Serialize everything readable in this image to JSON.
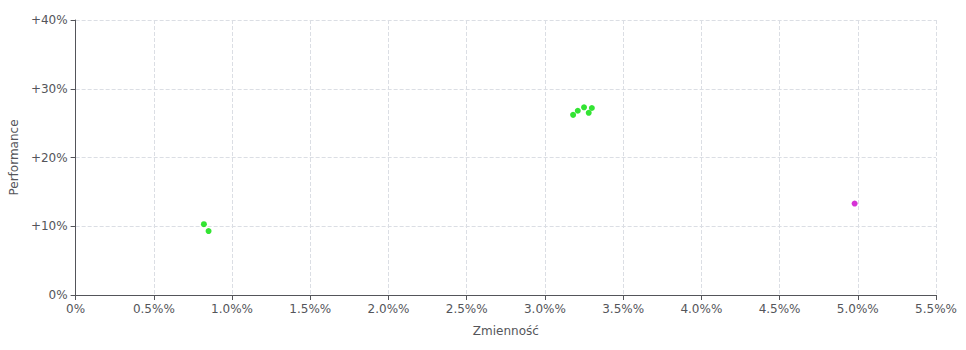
{
  "chart_data": {
    "type": "scatter",
    "xlabel": "Zmienność",
    "ylabel": "Performance",
    "xlim": [
      0.0,
      0.055
    ],
    "ylim": [
      0.0,
      0.4
    ],
    "xticks": [
      {
        "value": 0.0,
        "label": "0%"
      },
      {
        "value": 0.005,
        "label": "0.5%%"
      },
      {
        "value": 0.01,
        "label": "1.0%%"
      },
      {
        "value": 0.015,
        "label": "1.5%%"
      },
      {
        "value": 0.02,
        "label": "2.0%%"
      },
      {
        "value": 0.025,
        "label": "2.5%%"
      },
      {
        "value": 0.03,
        "label": "3.0%%"
      },
      {
        "value": 0.035,
        "label": "3.5%%"
      },
      {
        "value": 0.04,
        "label": "4.0%%"
      },
      {
        "value": 0.045,
        "label": "4.5%%"
      },
      {
        "value": 0.05,
        "label": "5.0%%"
      },
      {
        "value": 0.055,
        "label": "5.5%%"
      }
    ],
    "yticks": [
      {
        "value": 0.0,
        "label": "0%"
      },
      {
        "value": 0.1,
        "label": "+10%"
      },
      {
        "value": 0.2,
        "label": "+20%"
      },
      {
        "value": 0.3,
        "label": "+30%"
      },
      {
        "value": 0.4,
        "label": "+40%"
      }
    ],
    "grid": true,
    "series": [
      {
        "color": "#00dd00",
        "x": [
          0.0082,
          0.0085,
          0.0318,
          0.0321,
          0.0325,
          0.033,
          0.0328
        ],
        "values": [
          0.103,
          0.093,
          0.262,
          0.268,
          0.273,
          0.272,
          0.265
        ]
      },
      {
        "color": "#cc00cc",
        "x": [
          0.0498
        ],
        "values": [
          0.133
        ]
      }
    ]
  }
}
